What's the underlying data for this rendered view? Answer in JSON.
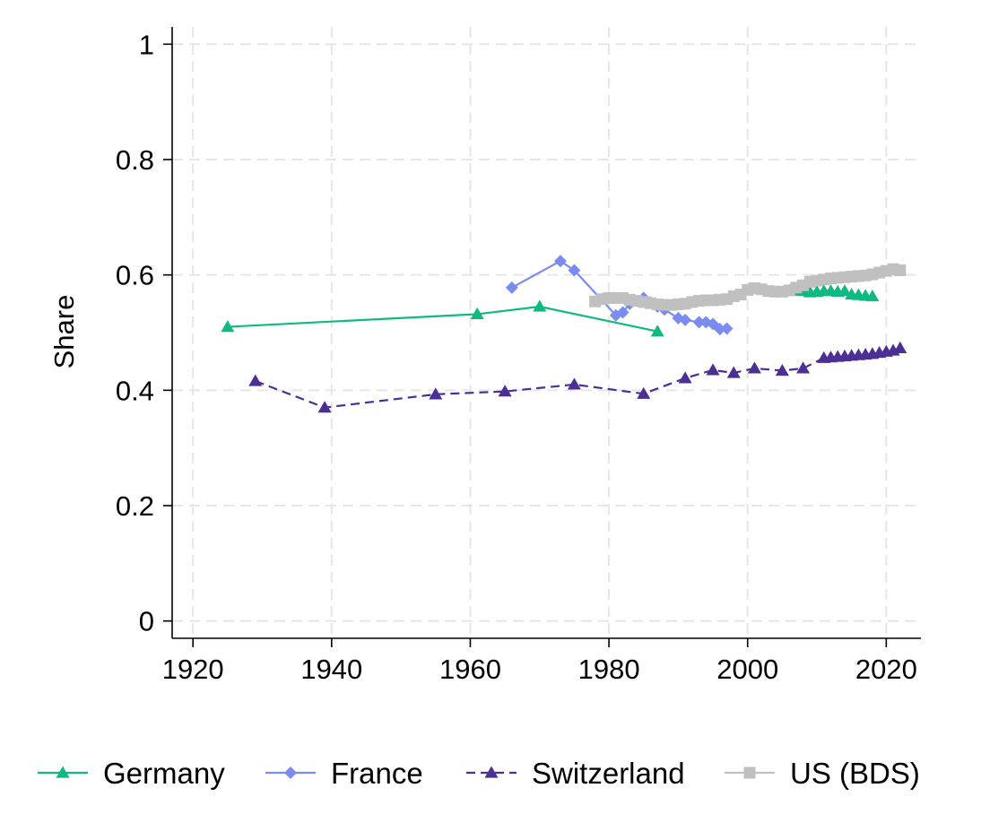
{
  "chart_data": {
    "type": "line",
    "title": "",
    "xlabel": "",
    "ylabel": "Share",
    "xlim": [
      1917,
      2025
    ],
    "ylim": [
      -0.03,
      1.03
    ],
    "x_ticks": [
      1920,
      1940,
      1960,
      1980,
      2000,
      2020
    ],
    "x_tick_labels": [
      "1920",
      "1940",
      "1960",
      "1980",
      "2000",
      "2020"
    ],
    "y_ticks": [
      0,
      0.2,
      0.4,
      0.6,
      0.8,
      1
    ],
    "y_tick_labels": [
      "0",
      "0.2",
      "0.4",
      "0.6",
      "0.8",
      "1"
    ],
    "grid": true,
    "legend_position": "bottom",
    "series": [
      {
        "name": "Germany",
        "color": "#10b981",
        "marker": "triangle",
        "line": "solid",
        "x": [
          1925,
          1961,
          1970,
          1987,
          2006,
          2007,
          2008,
          2009,
          2010,
          2011,
          2012,
          2013,
          2014,
          2015,
          2016,
          2017,
          2018
        ],
        "y": [
          0.51,
          0.532,
          0.545,
          0.502,
          0.573,
          0.573,
          0.572,
          0.57,
          0.571,
          0.572,
          0.572,
          0.571,
          0.572,
          0.566,
          0.565,
          0.564,
          0.563
        ],
        "segments": [
          [
            0,
            4
          ],
          [
            4,
            17
          ]
        ]
      },
      {
        "name": "France",
        "color": "#7b8cf0",
        "marker": "diamond",
        "line": "solid",
        "x": [
          1966,
          1973,
          1975,
          1981,
          1982,
          1983,
          1985,
          1986,
          1987,
          1988,
          1990,
          1991,
          1993,
          1994,
          1995,
          1996,
          1997
        ],
        "y": [
          0.578,
          0.624,
          0.608,
          0.53,
          0.535,
          0.55,
          0.56,
          0.552,
          0.545,
          0.54,
          0.525,
          0.522,
          0.518,
          0.518,
          0.515,
          0.506,
          0.507
        ],
        "segments": [
          [
            0,
            17
          ]
        ]
      },
      {
        "name": "Switzerland",
        "color": "#4c2f95",
        "marker": "triangle",
        "line": "dashed",
        "x": [
          1929,
          1939,
          1955,
          1965,
          1975,
          1985,
          1991,
          1995,
          1998,
          2001,
          2005,
          2008,
          2011,
          2012,
          2013,
          2014,
          2015,
          2016,
          2017,
          2018,
          2019,
          2020,
          2021,
          2022
        ],
        "y": [
          0.416,
          0.37,
          0.393,
          0.398,
          0.41,
          0.394,
          0.421,
          0.435,
          0.43,
          0.438,
          0.434,
          0.438,
          0.456,
          0.457,
          0.458,
          0.459,
          0.46,
          0.461,
          0.462,
          0.463,
          0.465,
          0.467,
          0.469,
          0.473
        ],
        "segments": [
          [
            0,
            24
          ]
        ]
      },
      {
        "name": "US (BDS)",
        "color": "#c0c0c0",
        "marker": "square",
        "line": "solid",
        "x": [
          1978,
          1979,
          1980,
          1981,
          1982,
          1983,
          1984,
          1985,
          1986,
          1987,
          1988,
          1989,
          1990,
          1991,
          1992,
          1993,
          1994,
          1995,
          1996,
          1997,
          1998,
          1999,
          2000,
          2001,
          2002,
          2003,
          2004,
          2005,
          2006,
          2007,
          2008,
          2009,
          2010,
          2011,
          2012,
          2013,
          2014,
          2015,
          2016,
          2017,
          2018,
          2019,
          2020,
          2021,
          2022
        ],
        "y": [
          0.554,
          0.558,
          0.56,
          0.56,
          0.56,
          0.557,
          0.555,
          0.553,
          0.551,
          0.549,
          0.548,
          0.548,
          0.549,
          0.55,
          0.553,
          0.555,
          0.556,
          0.556,
          0.557,
          0.558,
          0.563,
          0.566,
          0.574,
          0.577,
          0.575,
          0.572,
          0.571,
          0.571,
          0.573,
          0.578,
          0.582,
          0.588,
          0.59,
          0.592,
          0.594,
          0.595,
          0.596,
          0.597,
          0.598,
          0.599,
          0.601,
          0.604,
          0.607,
          0.61,
          0.608
        ],
        "segments": [
          [
            0,
            45
          ]
        ]
      }
    ]
  }
}
